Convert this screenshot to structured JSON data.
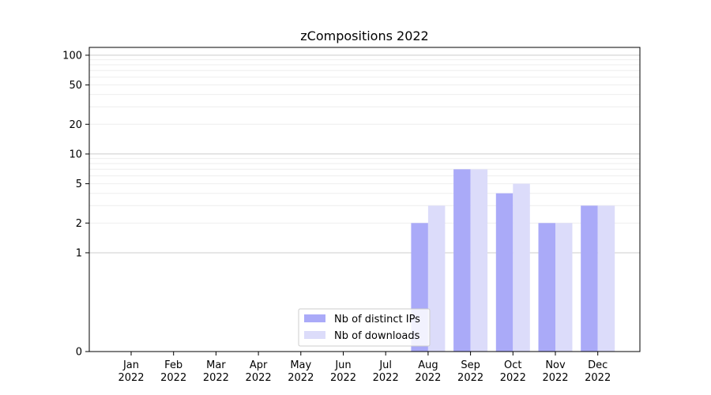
{
  "chart_data": {
    "type": "bar",
    "title": "zCompositions 2022",
    "xlabel": "",
    "ylabel": "",
    "yscale": "symlog",
    "ylim": [
      0,
      120
    ],
    "y_ticks": [
      0,
      1,
      2,
      5,
      10,
      20,
      50,
      100
    ],
    "categories": [
      {
        "month": "Jan",
        "year": "2022"
      },
      {
        "month": "Feb",
        "year": "2022"
      },
      {
        "month": "Mar",
        "year": "2022"
      },
      {
        "month": "Apr",
        "year": "2022"
      },
      {
        "month": "May",
        "year": "2022"
      },
      {
        "month": "Jun",
        "year": "2022"
      },
      {
        "month": "Jul",
        "year": "2022"
      },
      {
        "month": "Aug",
        "year": "2022"
      },
      {
        "month": "Sep",
        "year": "2022"
      },
      {
        "month": "Oct",
        "year": "2022"
      },
      {
        "month": "Nov",
        "year": "2022"
      },
      {
        "month": "Dec",
        "year": "2022"
      }
    ],
    "series": [
      {
        "name": "Nb of distinct IPs",
        "color": "#aaaaf8",
        "values": [
          0,
          0,
          0,
          0,
          0,
          0,
          0,
          2,
          7,
          4,
          2,
          3
        ]
      },
      {
        "name": "Nb of downloads",
        "color": "#dcdcfa",
        "values": [
          0,
          0,
          0,
          0,
          0,
          0,
          0,
          3,
          7,
          5,
          2,
          3
        ]
      }
    ],
    "grid": true,
    "legend_position": "lower-center"
  }
}
